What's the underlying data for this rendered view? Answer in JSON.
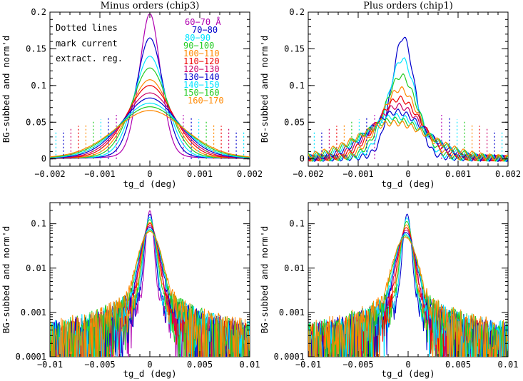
{
  "chart_data": [
    {
      "type": "line",
      "title": "Minus orders (chip3)",
      "xlabel": "tg_d (deg)",
      "ylabel": "BG-subbed and norm'd",
      "xlim": [
        -0.002,
        0.002
      ],
      "ylim": [
        -0.01,
        0.2
      ],
      "yscale": "linear",
      "x_ticks": [
        -0.002,
        -0.001,
        0,
        0.001,
        0.002
      ],
      "x_tick_labels": [
        "−0.002",
        "−0.001",
        "0",
        "0.001",
        "0.002"
      ],
      "y_ticks": [
        0,
        0.05,
        0.1,
        0.15,
        0.2
      ],
      "y_tick_labels": [
        "0",
        "0.05",
        "0.1",
        "0.15",
        "0.2"
      ],
      "annotation": [
        "Dotted lines",
        "mark current",
        "extract. reg."
      ],
      "series": [
        {
          "name": "60−70 Å",
          "color": "#b000b0",
          "peak": 0.198,
          "width": 0.00022,
          "edge": 0.00067
        },
        {
          "name": "70−80",
          "color": "#0000cc",
          "peak": 0.165,
          "width": 0.00028,
          "edge": 0.00083
        },
        {
          "name": "80−90",
          "color": "#00e5ff",
          "peak": 0.14,
          "width": 0.00033,
          "edge": 0.00098
        },
        {
          "name": "90−100",
          "color": "#22cc22",
          "peak": 0.124,
          "width": 0.00038,
          "edge": 0.00113
        },
        {
          "name": "100−110",
          "color": "#ff8800",
          "peak": 0.108,
          "width": 0.00043,
          "edge": 0.00128
        },
        {
          "name": "110−120",
          "color": "#ee0000",
          "peak": 0.1,
          "width": 0.00048,
          "edge": 0.00143
        },
        {
          "name": "120−130",
          "color": "#cc0066",
          "peak": 0.09,
          "width": 0.00053,
          "edge": 0.00158
        },
        {
          "name": "130−140",
          "color": "#0000cc",
          "peak": 0.083,
          "width": 0.00058,
          "edge": 0.00173
        },
        {
          "name": "140−150",
          "color": "#00e5ff",
          "peak": 0.076,
          "width": 0.00063,
          "edge": 0.00188
        },
        {
          "name": "150−160",
          "color": "#22cc22",
          "peak": 0.071,
          "width": 0.00068,
          "edge": 0.00203
        },
        {
          "name": "160−170",
          "color": "#ff8800",
          "peak": 0.066,
          "width": 0.00073,
          "edge": 0.00218
        }
      ]
    },
    {
      "type": "line",
      "title": "Plus orders (chip1)",
      "xlabel": "tg_d (deg)",
      "ylabel": "BG-subbed and norm'd",
      "xlim": [
        -0.002,
        0.002
      ],
      "ylim": [
        -0.01,
        0.2
      ],
      "yscale": "linear",
      "x_ticks": [
        -0.002,
        -0.001,
        0,
        0.001,
        0.002
      ],
      "x_tick_labels": [
        "−0.002",
        "−0.001",
        "0",
        "0.001",
        "0.002"
      ],
      "y_ticks": [
        0,
        0.05,
        0.1,
        0.15,
        0.2
      ],
      "y_tick_labels": [
        "0",
        "0.05",
        "0.1",
        "0.15",
        "0.2"
      ],
      "series": [
        {
          "color": "#0000cc",
          "peak": 0.166,
          "center": -0.0001,
          "width": 0.00024
        },
        {
          "color": "#00e5ff",
          "peak": 0.136,
          "center": -0.00012,
          "width": 0.0003
        },
        {
          "color": "#22cc22",
          "peak": 0.113,
          "center": -0.00014,
          "width": 0.00035
        },
        {
          "color": "#ff8800",
          "peak": 0.095,
          "center": -0.00016,
          "width": 0.0004
        },
        {
          "color": "#ee0000",
          "peak": 0.082,
          "center": -0.00018,
          "width": 0.00046
        },
        {
          "color": "#cc0066",
          "peak": 0.072,
          "center": -0.0002,
          "width": 0.00052
        },
        {
          "color": "#0000cc",
          "peak": 0.064,
          "center": -0.00022,
          "width": 0.00058
        },
        {
          "color": "#00e5ff",
          "peak": 0.058,
          "center": -0.00024,
          "width": 0.00064
        },
        {
          "color": "#22cc22",
          "peak": 0.053,
          "center": -0.00026,
          "width": 0.0007
        },
        {
          "color": "#ff8800",
          "peak": 0.049,
          "center": -0.00028,
          "width": 0.00076
        }
      ]
    },
    {
      "type": "line",
      "xlabel": "tg_d (deg)",
      "ylabel": "BG-subbed and norm'd",
      "xlim": [
        -0.01,
        0.01
      ],
      "ylim": [
        0.0001,
        0.3
      ],
      "yscale": "log",
      "x_ticks": [
        -0.01,
        -0.005,
        0,
        0.005,
        0.01
      ],
      "x_tick_labels": [
        "−0.01",
        "−0.005",
        "0",
        "0.005",
        "0.01"
      ],
      "y_ticks": [
        0.0001,
        0.001,
        0.01,
        0.1
      ],
      "y_tick_labels": [
        "0.0001",
        "0.001",
        "0.01",
        "0.1"
      ]
    },
    {
      "type": "line",
      "xlabel": "tg_d (deg)",
      "ylabel": "BG-subbed and norm'd",
      "xlim": [
        -0.01,
        0.01
      ],
      "ylim": [
        0.0001,
        0.3
      ],
      "yscale": "log",
      "x_ticks": [
        -0.01,
        -0.005,
        0,
        0.005,
        0.01
      ],
      "x_tick_labels": [
        "−0.01",
        "−0.005",
        "0",
        "0.005",
        "0.01"
      ],
      "y_ticks": [
        0.0001,
        0.001,
        0.01,
        0.1
      ],
      "y_tick_labels": [
        "0.0001",
        "0.001",
        "0.01",
        "0.1"
      ]
    }
  ]
}
